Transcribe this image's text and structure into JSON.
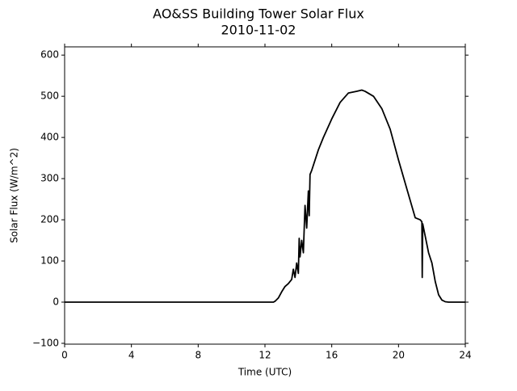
{
  "chart_data": {
    "type": "line",
    "title": "AO&SS Building Tower Solar Flux",
    "subtitle": "2010-11-02",
    "x_label": "Time (UTC)",
    "y_label": "Solar Flux (W/m^2)",
    "x": [
      0,
      12,
      12.5,
      12.6,
      12.8,
      13.0,
      13.2,
      13.4,
      13.6,
      13.7,
      13.8,
      13.9,
      14.0,
      14.05,
      14.1,
      14.2,
      14.3,
      14.4,
      14.5,
      14.6,
      14.65,
      14.7,
      14.8,
      15.0,
      15.2,
      15.5,
      16.0,
      16.5,
      17.0,
      17.5,
      17.8,
      18.0,
      18.5,
      19.0,
      19.5,
      20.0,
      20.5,
      21.0,
      21.3,
      21.4,
      21.42,
      21.45,
      21.6,
      21.8,
      22.0,
      22.2,
      22.4,
      22.6,
      22.8,
      23.0,
      24
    ],
    "series": [
      {
        "name": "Solar Flux",
        "color": "#000000",
        "values": [
          0,
          0,
          0,
          2,
          10,
          25,
          38,
          45,
          55,
          80,
          60,
          95,
          70,
          155,
          110,
          150,
          120,
          235,
          180,
          270,
          210,
          310,
          320,
          345,
          370,
          400,
          445,
          485,
          508,
          512,
          515,
          512,
          500,
          470,
          420,
          345,
          275,
          205,
          200,
          195,
          60,
          190,
          160,
          120,
          95,
          50,
          18,
          5,
          1,
          0,
          0
        ]
      }
    ],
    "xlim": [
      0,
      24
    ],
    "xticks": [
      0,
      4,
      8,
      12,
      16,
      20,
      24
    ],
    "ylim": [
      -102,
      620
    ],
    "yticks": [
      {
        "value": -100,
        "label": "−100"
      },
      0,
      100,
      200,
      300,
      400,
      500,
      600
    ]
  }
}
